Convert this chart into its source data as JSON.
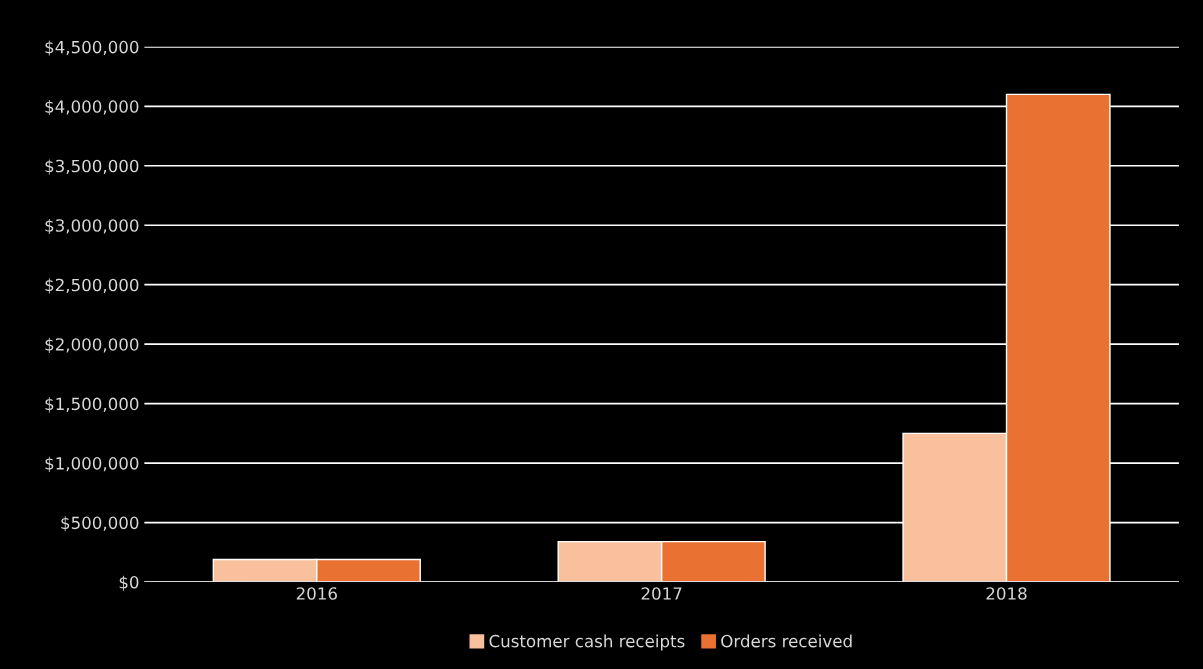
{
  "chart_data": {
    "type": "bar",
    "categories": [
      "2016",
      "2017",
      "2018"
    ],
    "series": [
      {
        "name": "Customer cash receipts",
        "color": "#f8c09d",
        "values": [
          190000,
          340000,
          1250000
        ]
      },
      {
        "name": "Orders received",
        "color": "#e97131",
        "values": [
          190000,
          340000,
          4100000
        ]
      }
    ],
    "ylim": [
      0,
      4500000
    ],
    "yticks": [
      {
        "value": 0,
        "label": "$0"
      },
      {
        "value": 500000,
        "label": "$500,000"
      },
      {
        "value": 1000000,
        "label": "$1,000,000"
      },
      {
        "value": 1500000,
        "label": "$1,500,000"
      },
      {
        "value": 2000000,
        "label": "$2,000,000"
      },
      {
        "value": 2500000,
        "label": "$2,500,000"
      },
      {
        "value": 3000000,
        "label": "$3,000,000"
      },
      {
        "value": 3500000,
        "label": "$3,500,000"
      },
      {
        "value": 4000000,
        "label": "$4,000,000"
      },
      {
        "value": 4500000,
        "label": "$4,500,000"
      }
    ],
    "grid": "y",
    "legend": "bottom"
  }
}
